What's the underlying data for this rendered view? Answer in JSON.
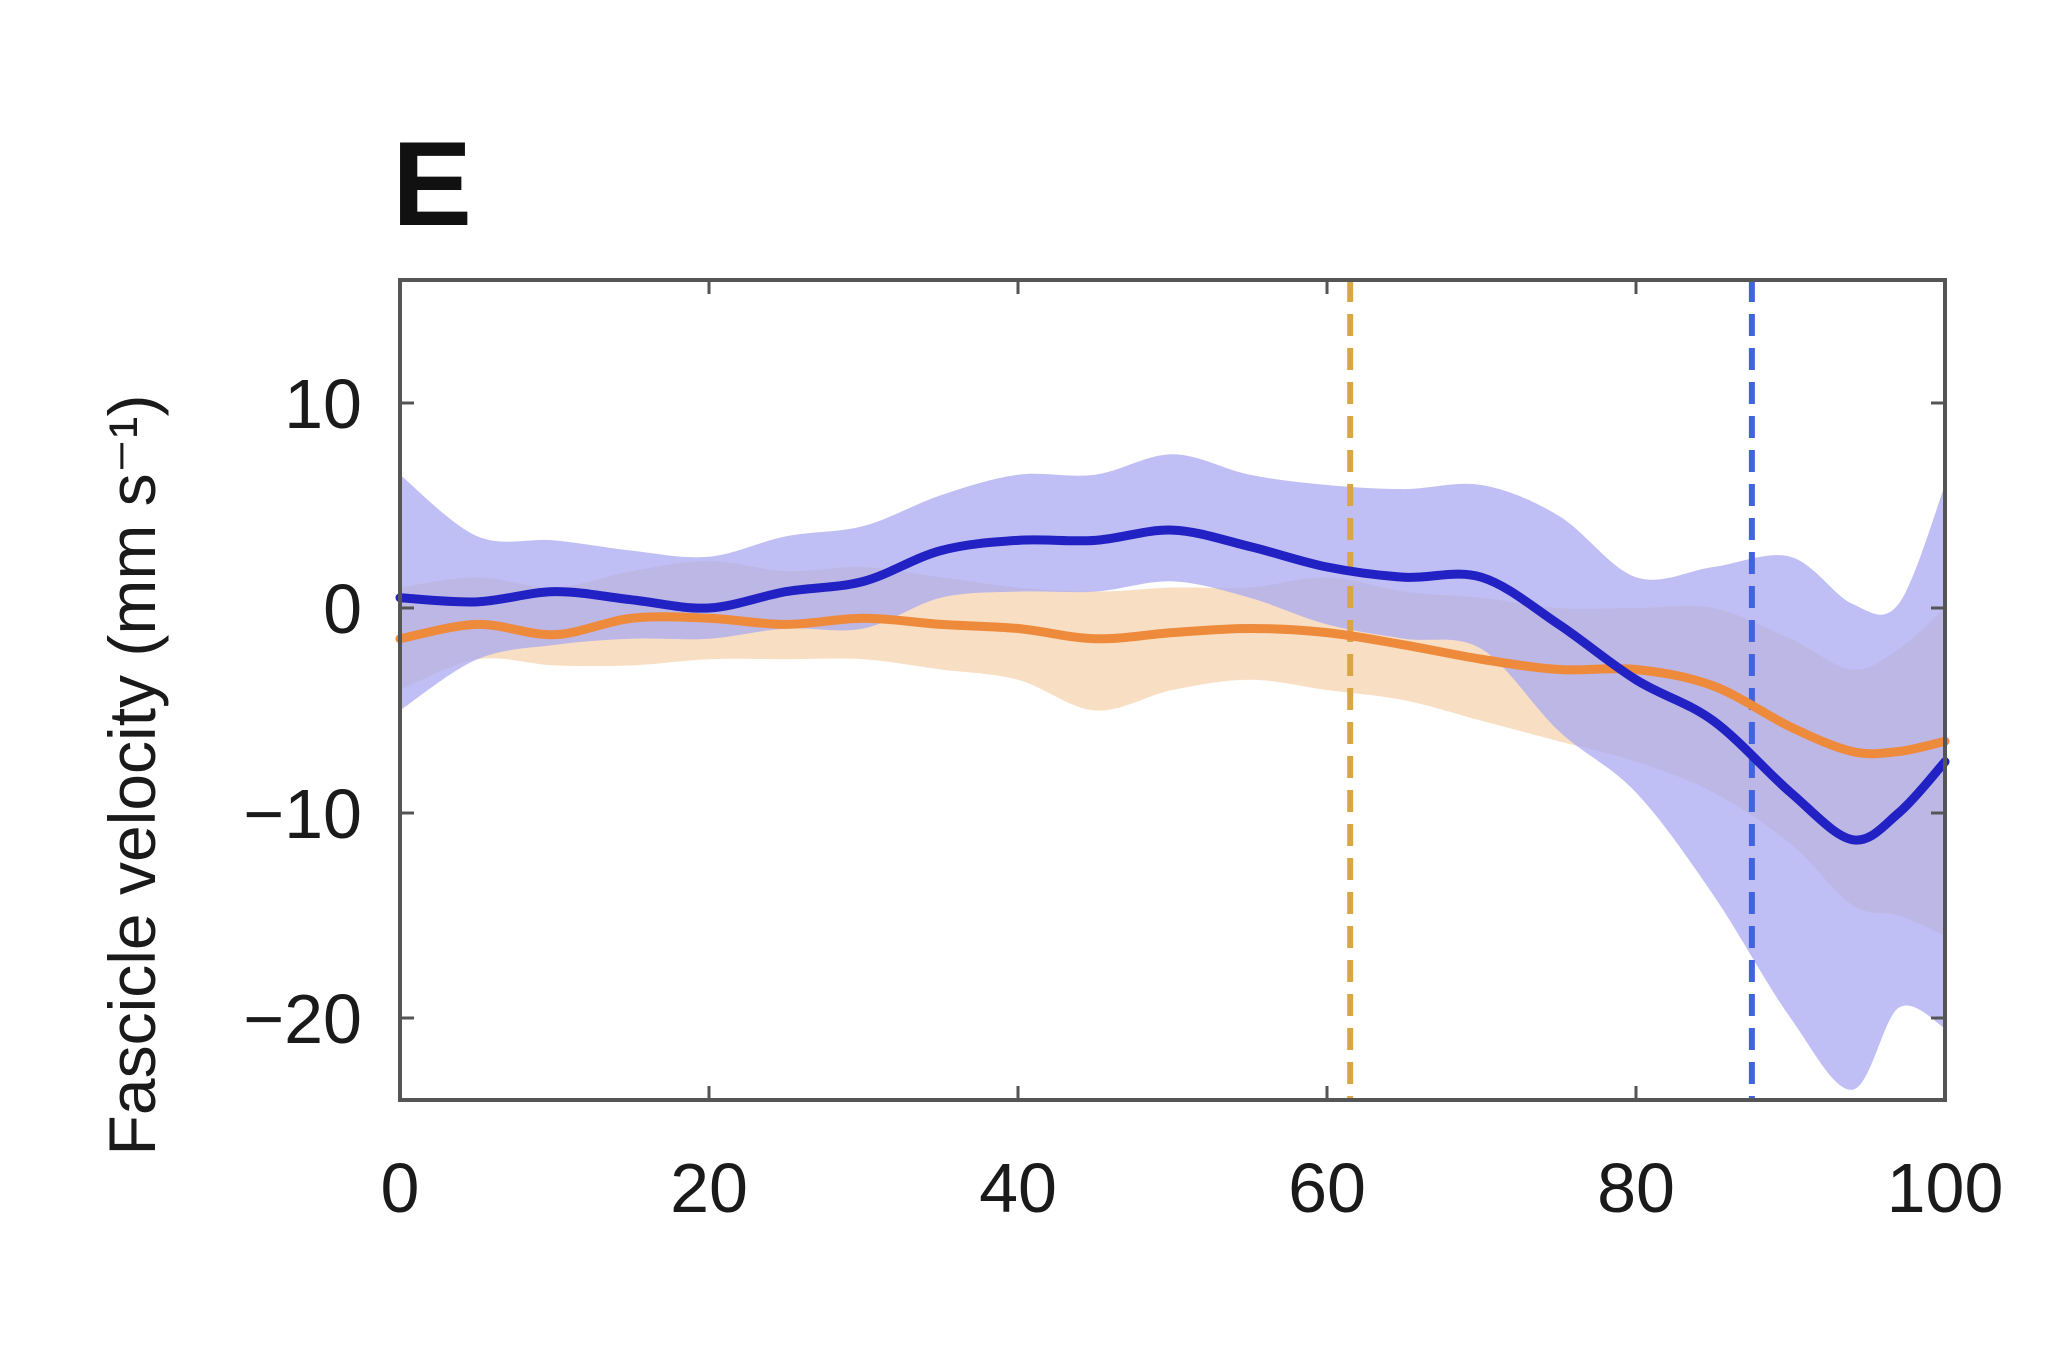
{
  "chart_data": {
    "type": "line",
    "panel_label": "E",
    "title": "",
    "xlabel": "",
    "ylabel": "Fascicle velocity (mm s⁻¹)",
    "xlim": [
      0,
      100
    ],
    "ylim": [
      -24,
      16
    ],
    "x_ticks": [
      0,
      20,
      40,
      60,
      80,
      100
    ],
    "x_tick_labels": [
      "0",
      "20",
      "40",
      "60",
      "80",
      "100"
    ],
    "y_ticks": [
      10,
      0,
      -10,
      -20
    ],
    "y_tick_labels": [
      "10",
      "0",
      "−10",
      "−20"
    ],
    "grid": false,
    "legend": false,
    "colors": {
      "blue_line": "#2121c4",
      "blue_band": "#aaaaf2",
      "orange_line": "#ee8a3c",
      "orange_band": "#f7d9b8",
      "orange_vline": "#d9a545",
      "blue_vline": "#4163dd"
    },
    "series": [
      {
        "color": "blue",
        "x": [
          0,
          5,
          10,
          15,
          20,
          25,
          30,
          35,
          40,
          45,
          50,
          55,
          60,
          65,
          70,
          75,
          80,
          85,
          90,
          94,
          97,
          100
        ],
        "mean": [
          0.5,
          0.3,
          0.8,
          0.4,
          0.0,
          0.8,
          1.3,
          2.8,
          3.3,
          3.3,
          3.8,
          3.0,
          2.0,
          1.5,
          1.5,
          -0.8,
          -3.5,
          -5.5,
          -9.0,
          -11.3,
          -10.0,
          -7.5
        ],
        "upper": [
          6.5,
          3.5,
          3.3,
          2.8,
          2.5,
          3.5,
          4.0,
          5.5,
          6.5,
          6.5,
          7.5,
          6.5,
          6.0,
          5.8,
          6.0,
          4.5,
          1.5,
          2.0,
          2.5,
          0.2,
          0.2,
          6.0
        ],
        "lower": [
          -5.0,
          -2.5,
          -1.8,
          -1.5,
          -1.5,
          -1.0,
          -1.0,
          0.5,
          0.8,
          0.8,
          1.3,
          0.5,
          -0.8,
          -1.5,
          -2.0,
          -6.0,
          -9.0,
          -14.0,
          -20.0,
          -23.5,
          -19.5,
          -20.5
        ]
      },
      {
        "color": "orange",
        "x": [
          0,
          5,
          10,
          15,
          20,
          25,
          30,
          35,
          40,
          45,
          50,
          55,
          60,
          65,
          70,
          75,
          80,
          85,
          90,
          94,
          97,
          100
        ],
        "mean": [
          -1.5,
          -0.8,
          -1.3,
          -0.5,
          -0.5,
          -0.8,
          -0.5,
          -0.8,
          -1.0,
          -1.5,
          -1.2,
          -1.0,
          -1.2,
          -1.8,
          -2.5,
          -3.0,
          -3.0,
          -3.8,
          -5.8,
          -7.0,
          -7.0,
          -6.5
        ],
        "upper": [
          1.0,
          1.5,
          1.0,
          1.8,
          2.3,
          1.8,
          2.0,
          1.5,
          1.0,
          0.8,
          1.0,
          1.0,
          1.5,
          0.8,
          0.5,
          0.0,
          0.0,
          0.0,
          -1.5,
          -3.0,
          -2.0,
          0.0
        ],
        "lower": [
          -4.0,
          -2.5,
          -2.8,
          -2.8,
          -2.5,
          -2.5,
          -2.5,
          -3.0,
          -3.5,
          -5.0,
          -4.0,
          -3.5,
          -4.0,
          -4.5,
          -5.5,
          -6.5,
          -7.5,
          -9.0,
          -11.5,
          -14.5,
          -15.0,
          -16.0
        ]
      }
    ],
    "vertical_lines": [
      {
        "x": 61.5,
        "color": "orange",
        "style": "dashed"
      },
      {
        "x": 87.5,
        "color": "blue",
        "style": "dashed"
      }
    ]
  }
}
